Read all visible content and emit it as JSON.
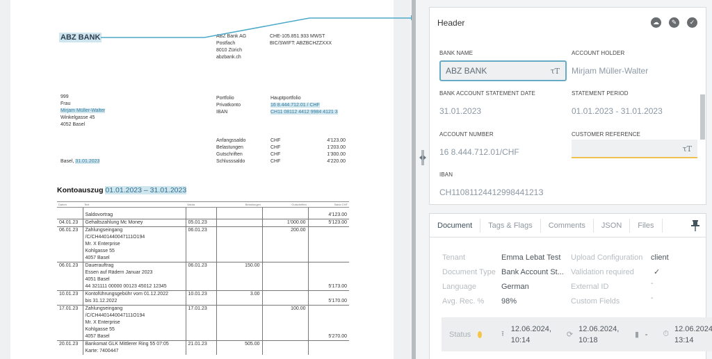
{
  "document": {
    "bank_logo": "ABZ BANK",
    "bank_address": [
      "ABZ Bank AG",
      "Postfach",
      "8010 Zürich",
      "abzbank.ch"
    ],
    "bank_ids": [
      "CHE-105.851.933 MWST",
      "BIC/SWIFT: ABZBCHZZXXX"
    ],
    "recipient": [
      "999",
      "Frau",
      "Mirjam Müller-Walter",
      "Winkelgasse 45",
      "4052 Basel"
    ],
    "place_date_prefix": "Basel, ",
    "place_date": "31.01.2023",
    "portfolio_labels": [
      "Portfolio",
      "Privatkonto",
      "IBAN"
    ],
    "portfolio_values": [
      "Hauptportfolio",
      "16 8.444.712.01 / CHF",
      "CH11 08112 4412 9984 4121 3"
    ],
    "summary": [
      {
        "label": "Anfangssaldo",
        "ccy": "CHF",
        "amount": "4'123.00"
      },
      {
        "label": "Belastungen",
        "ccy": "CHF",
        "amount": "1'203.00"
      },
      {
        "label": "Gutschriften",
        "ccy": "CHF",
        "amount": "1'300.00"
      },
      {
        "label": "Schlusssaldo",
        "ccy": "CHF",
        "amount": "4'220.00"
      }
    ],
    "title_prefix": "Kontoauszug ",
    "title_period": "01.01.2023 – 31.01.2023",
    "table": {
      "headers": [
        "Datum",
        "Text",
        "Valuta",
        "Belastungen",
        "Gutschriften",
        "Saldo CHF"
      ],
      "rows": [
        {
          "date": "",
          "text": "Saldovortrag",
          "valuta": "",
          "debit": "",
          "credit": "",
          "balance": "4'123.00"
        },
        {
          "date": "04.01.23",
          "text": "Gehaltszahlung Mc Money",
          "valuta": "05.01.23",
          "debit": "",
          "credit": "1'000.00",
          "balance": "5'123.00"
        },
        {
          "date": "06.01.23",
          "text": "Zahlungseingang\n/C/CH4401440047111O194\nMr. X Enterprise\nKohlgasse 55\n4057 Basel",
          "valuta": "06.01.23",
          "debit": "",
          "credit": "200.00",
          "balance": ""
        },
        {
          "date": "06.01.23",
          "text": "Dauerauftrag\nEssen auf Rädern Januar 2023\n4051 Basel\n44 321111 00000 00123 45012 12345",
          "valuta": "06.01.23",
          "debit": "150.00",
          "credit": "",
          "balance": "5'173.00"
        },
        {
          "date": "10.01.23",
          "text": "Kontoführungsgebühr vom 01.12.2022\nbis 31.12.2022",
          "valuta": "10.01.23",
          "debit": "3.00",
          "credit": "",
          "balance": "5'170.00"
        },
        {
          "date": "17.01.23",
          "text": "Zahlungseingang\n/C/CH4401440047111O194\nMr. X Enterprise\nKohlgasse 55\n4057 Basel",
          "valuta": "17.01.23",
          "debit": "",
          "credit": "100.00",
          "balance": "5'270.00"
        },
        {
          "date": "20.01.23",
          "text": "Bankomat GLK Mittlerer Ring 55 07:05\nKarte: 7400447",
          "valuta": "21.01.23",
          "debit": "505.00",
          "credit": "",
          "balance": ""
        }
      ]
    }
  },
  "header_panel": {
    "title": "Header",
    "icons": [
      "cloud-upload-icon",
      "edit-check-icon",
      "check-circle-icon"
    ],
    "fields": {
      "bank_name": {
        "label": "BANK NAME",
        "value": "ABZ BANK"
      },
      "account_holder": {
        "label": "ACCOUNT HOLDER",
        "value": "Mirjam Müller-Walter"
      },
      "statement_date": {
        "label": "BANK ACCOUNT STATEMENT DATE",
        "value": "31.01.2023"
      },
      "statement_period": {
        "label": "STATEMENT PERIOD",
        "value": "01.01.2023 - 31.01.2023"
      },
      "account_number": {
        "label": "ACCOUNT NUMBER",
        "value": "16 8.444.712.01/CHF"
      },
      "customer_reference": {
        "label": "CUSTOMER REFERENCE",
        "value": ""
      },
      "iban": {
        "label": "IBAN",
        "value": "CH1108112441299844121З"
      }
    },
    "text_format_icon": "τT"
  },
  "info_panel": {
    "tabs": [
      {
        "label": "Document",
        "active": true
      },
      {
        "label": "Tags & Flags",
        "active": false
      },
      {
        "label": "Comments",
        "active": false
      },
      {
        "label": "JSON",
        "active": false
      },
      {
        "label": "Files",
        "active": false
      }
    ],
    "meta": [
      {
        "k": "Tenant",
        "v": "Emma Lebat Test",
        "k2": "Upload Configuration",
        "v2": "client"
      },
      {
        "k": "Document Type",
        "v": "Bank Account St...",
        "k2": "Validation required",
        "v2": "✓"
      },
      {
        "k": "Language",
        "v": "German",
        "k2": "External ID",
        "v2": "-"
      },
      {
        "k": "Avg. Rec. %",
        "v": "98%",
        "k2": "Custom Fields",
        "v2": "-"
      }
    ],
    "status": {
      "label": "Status",
      "dot_color": "#f5c547",
      "uploaded": "12.06.2024,\n10:14",
      "updated": "12.06.2024,\n10:18",
      "file": "-",
      "timer": "12.06.2024\n13:14"
    }
  },
  "colors": {
    "accent": "#67aac4",
    "highlight": "#cfe6ee",
    "warning_underline": "#f0c04e",
    "status_pending": "#f5c547"
  }
}
